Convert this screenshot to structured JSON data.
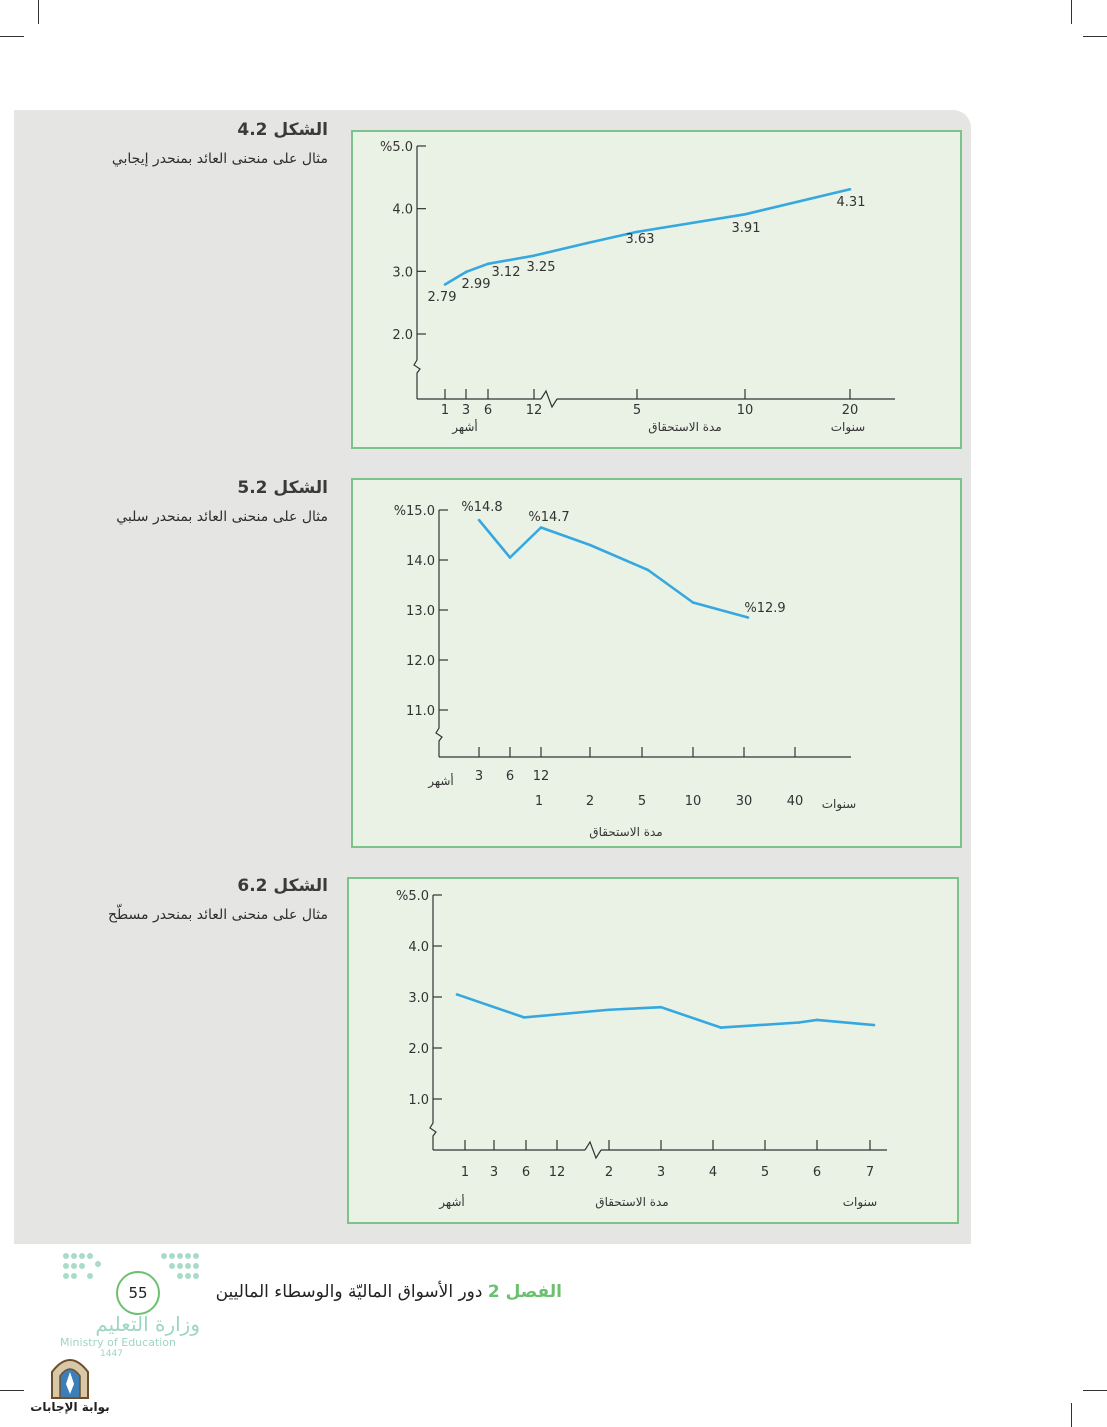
{
  "charts": [
    {
      "caption_title": "الشكل 4.2",
      "caption_body": "مثال على منحنى العائد بمنحدر إيجابي",
      "maturity_label": "مدة الاستحقاق",
      "months_label": "أشهر",
      "years_label": "سنوات",
      "color": "#36a8df"
    },
    {
      "caption_title": "الشكل 5.2",
      "caption_body": "مثال على منحنى العائد بمنحدر سلبي",
      "maturity_label": "مدة الاستحقاق",
      "months_label": "أشهر",
      "years_label": "سنوات",
      "color": "#36a8df"
    },
    {
      "caption_title": "الشكل 6.2",
      "caption_body": "مثال على منحنى العائد بمنحدر مسطّح",
      "maturity_label": "مدة الاستحقاق",
      "months_label": "أشهر",
      "years_label": "سنوات",
      "color": "#36a8df"
    }
  ],
  "chart_data": [
    {
      "type": "line",
      "ylim": [
        2.0,
        5.0
      ],
      "yticks": [
        "%5.0",
        "4.0",
        "3.0",
        "2.0"
      ],
      "y_axis_broken": true,
      "x_axis_broken_after": "12",
      "xticks": [
        "1",
        "3",
        "6",
        "12",
        "5",
        "10",
        "20"
      ],
      "series": [
        {
          "x": [
            "1 month",
            "3 months",
            "6 months",
            "12 months",
            "2 years",
            "5 years",
            "10 years",
            "20 years"
          ],
          "values": [
            2.79,
            2.99,
            3.12,
            3.25,
            3.45,
            3.63,
            3.91,
            4.31
          ]
        }
      ],
      "point_labels": [
        "2.79",
        "2.99",
        "3.12",
        "3.25",
        "3.63",
        "3.91",
        "4.31"
      ]
    },
    {
      "type": "line",
      "ylim": [
        11.0,
        15.0
      ],
      "yticks": [
        "%15.0",
        "14.0",
        "13.0",
        "12.0",
        "11.0"
      ],
      "y_axis_broken": true,
      "xticks_months": [
        "3",
        "6",
        "12"
      ],
      "xticks_years": [
        "1",
        "2",
        "5",
        "10",
        "30",
        "40"
      ],
      "series": [
        {
          "x": [
            "3 months",
            "6 months",
            "12 months",
            "2 years",
            "5 years",
            "10 years",
            "30 years"
          ],
          "values": [
            14.8,
            14.05,
            14.65,
            14.3,
            13.8,
            13.15,
            12.85
          ]
        }
      ],
      "point_labels": [
        "%14.8",
        "%14.7",
        "%12.9"
      ]
    },
    {
      "type": "line",
      "ylim": [
        1.0,
        5.0
      ],
      "yticks": [
        "%5.0",
        "4.0",
        "3.0",
        "2.0",
        "1.0"
      ],
      "y_axis_broken": true,
      "x_axis_broken_after": "12",
      "xticks": [
        "1",
        "3",
        "6",
        "12",
        "2",
        "3",
        "4",
        "5",
        "6",
        "7"
      ],
      "series": [
        {
          "x": [
            "1 month",
            "6 months",
            "2 years",
            "3 years",
            "4 years",
            "5 years",
            "6 years",
            "7 years"
          ],
          "values": [
            3.05,
            2.6,
            2.75,
            2.8,
            2.4,
            2.5,
            2.55,
            2.45
          ]
        }
      ],
      "point_labels": []
    }
  ],
  "footer": {
    "chapter_label": "الفصل 2",
    "chapter_title": "دور الأسواق الماليّة والوسطاء الماليين",
    "page_number": "55",
    "ministry_ar": "وزارة التعليم",
    "ministry_en": "Ministry of Education",
    "year": "1447",
    "watermark": "بوابة الإجابات"
  }
}
